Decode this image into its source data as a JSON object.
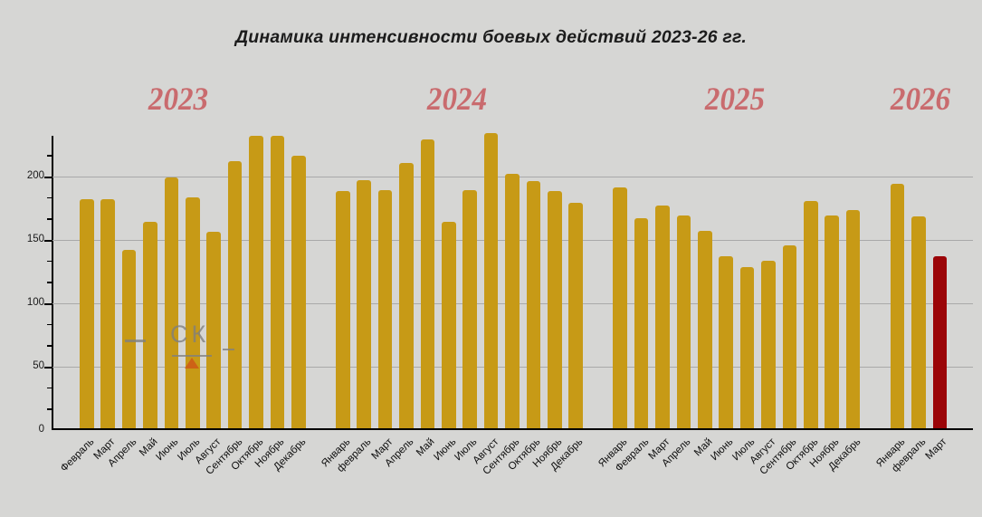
{
  "title": "Динамика интенсивности боевых действий 2023-26 гг.",
  "watermark": {
    "letters": "СК"
  },
  "colors": {
    "background": "#d6d6d4",
    "bar_gold": "#c79a16",
    "bar_red": "#9b0508",
    "year_label": "#c96b6e",
    "gridline": "#a9a9a9",
    "axis": "#000000",
    "title_text": "#1c1c1c",
    "watermark_grey": "#7f7f7f",
    "watermark_triangle": "#cf4b16"
  },
  "y_axis": {
    "tick_labels": [
      "0",
      "50",
      "100",
      "150",
      "200"
    ]
  },
  "chart_data": {
    "type": "bar",
    "title": "Динамика интенсивности боевых действий 2023-26 гг.",
    "xlabel": "",
    "ylabel": "",
    "ylim": [
      0,
      232
    ],
    "yticks": [
      0,
      50,
      100,
      150,
      200
    ],
    "grid": "horizontal",
    "legend": "none",
    "bar_color": "#c79a16",
    "highlight_color": "#9b0508",
    "groups": [
      {
        "year": "2023",
        "categories": [
          "Февраль",
          "Март",
          "Апрель",
          "Май",
          "Июнь",
          "Июль",
          "Август",
          "Сентябрь",
          "Октябрь",
          "Ноябрь",
          "Декабрь"
        ],
        "values": [
          181,
          181,
          141,
          163,
          198,
          182,
          155,
          211,
          231,
          231,
          215
        ]
      },
      {
        "year": "2024",
        "categories": [
          "Январь",
          "февраль",
          "Март",
          "Апрель",
          "Май",
          "Июнь",
          "Июль",
          "Август",
          "Сентябрь",
          "Октябрь",
          "Ноябрь",
          "Декабрь"
        ],
        "values": [
          187,
          196,
          188,
          209,
          228,
          163,
          188,
          233,
          201,
          195,
          187,
          178
        ]
      },
      {
        "year": "2025",
        "categories": [
          "Январь",
          "Февраль",
          "Март",
          "Апрель",
          "Май",
          "Июнь",
          "Июль",
          "Август",
          "Сентябрь",
          "Октябрь",
          "Ноябрь",
          "Декабрь"
        ],
        "values": [
          190,
          166,
          176,
          168,
          156,
          136,
          127,
          132,
          144,
          179,
          168,
          172
        ]
      },
      {
        "year": "2026",
        "categories": [
          "Январь",
          "февраль",
          "Март"
        ],
        "values": [
          193,
          167,
          136
        ]
      }
    ],
    "highlight_bar": {
      "group": "2026",
      "category": "Март"
    }
  }
}
